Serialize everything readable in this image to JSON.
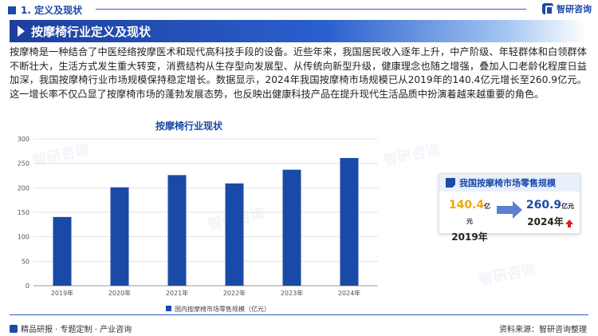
{
  "header": {
    "section_title": "1. 定义及现状",
    "brand_name": "智研咨询"
  },
  "banner": {
    "title": "按摩椅行业定义及现状"
  },
  "intro": {
    "text": "按摩椅是一种结合了中医经络按摩医术和现代高科技手段的设备。近些年来，我国居民收入逐年上升，中产阶级、年轻群体和白领群体不断壮大，生活方式发生重大转变，消费结构从生存型向发展型、从传统向新型升级，健康理念也随之增强，叠加人口老龄化程度日益加深，我国按摩椅行业市场规模保持稳定增长。数据显示，2024年我国按摩椅市场规模已从2019年的140.4亿元增长至260.9亿元。这一增长率不仅凸显了按摩椅市场的蓬勃发展态势，也反映出健康科技产品在提升现代生活品质中扮演着越来越重要的角色。"
  },
  "chart_data": {
    "type": "bar",
    "title": "按摩椅行业现状",
    "categories": [
      "2019年",
      "2020年",
      "2021年",
      "2022年",
      "2023年",
      "2024年"
    ],
    "series": [
      {
        "name": "国内按摩椅市场零售规模（亿元）",
        "values": [
          140.4,
          201,
          226,
          209,
          237,
          260.9
        ]
      }
    ],
    "ylim": [
      0,
      300
    ],
    "yticks": [
      "0",
      "50",
      "100",
      "150",
      "200",
      "250",
      "300"
    ],
    "grid": true,
    "legend": "bottom",
    "bar_color": "#1a4aa8"
  },
  "card": {
    "title": "我国按摩椅市场零售规模",
    "left_value": "140.4",
    "left_unit": "亿元",
    "left_year": "2019年",
    "right_value": "260.9",
    "right_unit": "亿元",
    "right_year": "2024年"
  },
  "footer": {
    "left_text": "精品研报 · 专题定制 · 产业咨询",
    "right_text": "资料来源：智研咨询整理"
  },
  "watermark": "智研咨询",
  "colors": {
    "primary": "#1a4aa8",
    "accent": "#f2a900",
    "up": "#d62020"
  }
}
